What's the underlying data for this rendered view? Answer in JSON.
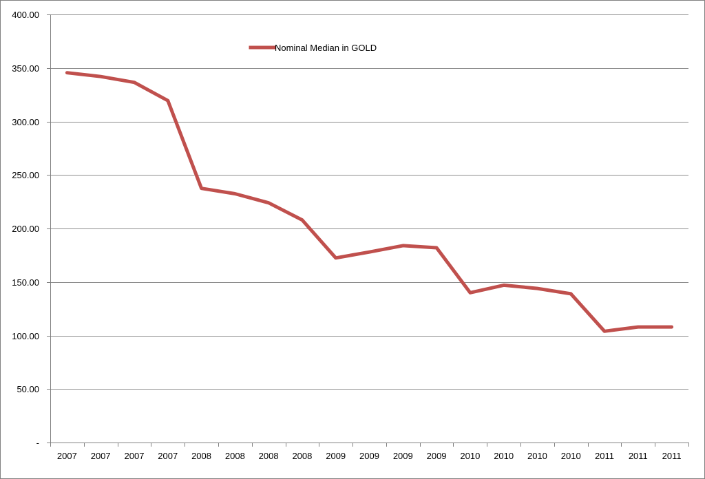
{
  "chart_data": {
    "type": "line",
    "title": "",
    "xlabel": "",
    "ylabel": "",
    "categories": [
      "2007",
      "2007",
      "2007",
      "2007",
      "2008",
      "2008",
      "2008",
      "2008",
      "2009",
      "2009",
      "2009",
      "2009",
      "2010",
      "2010",
      "2010",
      "2010",
      "2011",
      "2011",
      "2011"
    ],
    "series": [
      {
        "name": "Nominal Median in GOLD",
        "color": "#C0504D",
        "values": [
          345.5,
          342,
          336.5,
          319.5,
          237.5,
          232.5,
          224,
          208,
          172.5,
          178,
          184,
          182,
          140,
          147,
          144,
          139,
          104,
          108,
          108
        ]
      }
    ],
    "ylim": [
      0,
      400
    ],
    "yticks": [
      {
        "value": 0,
        "label": "-"
      },
      {
        "value": 50,
        "label": "50.00"
      },
      {
        "value": 100,
        "label": "100.00"
      },
      {
        "value": 150,
        "label": "150.00"
      },
      {
        "value": 200,
        "label": "200.00"
      },
      {
        "value": 250,
        "label": "250.00"
      },
      {
        "value": 300,
        "label": "300.00"
      },
      {
        "value": 350,
        "label": "350.00"
      },
      {
        "value": 400,
        "label": "400.00"
      }
    ],
    "grid": true,
    "legend_position": "top-center",
    "frame_color": "#808080",
    "grid_color": "#8C8C8C"
  }
}
